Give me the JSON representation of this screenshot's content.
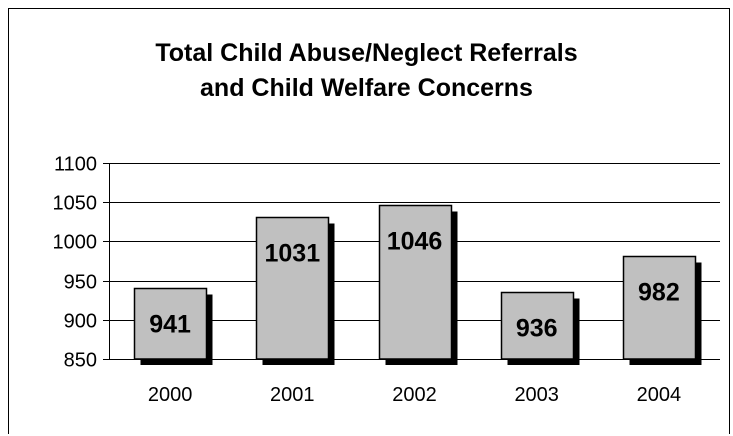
{
  "chart_data": {
    "type": "bar",
    "title_lines": [
      "Total Child Abuse/Neglect Referrals",
      "and Child Welfare Concerns"
    ],
    "categories": [
      "2000",
      "2001",
      "2002",
      "2003",
      "2004"
    ],
    "values": [
      941,
      1031,
      1046,
      936,
      982
    ],
    "data_labels": [
      "941",
      "1031",
      "1046",
      "936",
      "982"
    ],
    "ylim": [
      850,
      1100
    ],
    "y_ticks": [
      850,
      900,
      950,
      1000,
      1050,
      1100
    ],
    "y_tick_labels": [
      "850",
      "900",
      "950",
      "1000",
      "1050",
      "1100"
    ],
    "grid": true,
    "legend": "none",
    "colors": {
      "bar_fill": "#c0c0c0",
      "bar_shadow": "#000000",
      "bar_stroke": "#000000",
      "grid": "#000000",
      "text": "#000000"
    }
  }
}
